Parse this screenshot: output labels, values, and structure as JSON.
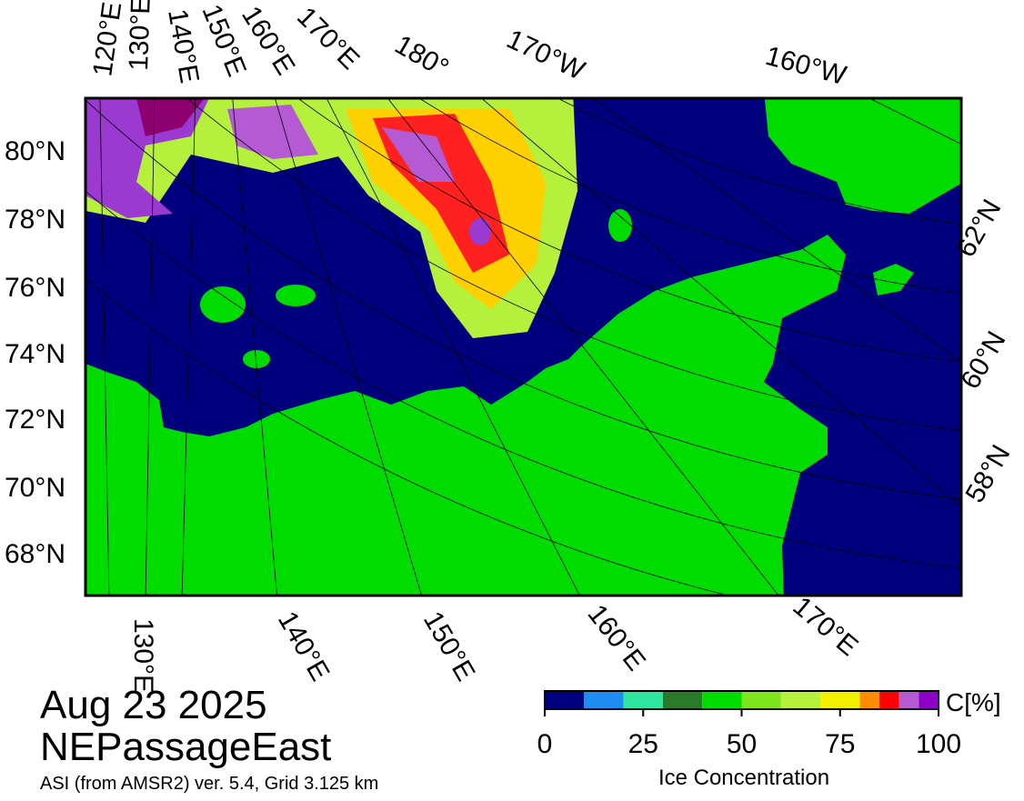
{
  "map": {
    "top_labels": [
      "120°E",
      "130°E",
      "140°E",
      "150°E",
      "160°E",
      "170°E",
      "180°",
      "170°W",
      "160°W"
    ],
    "left_labels": [
      "80°N",
      "78°N",
      "76°N",
      "74°N",
      "72°N",
      "70°N",
      "68°N"
    ],
    "right_labels": [
      "62°N",
      "60°N",
      "58°N"
    ],
    "bottom_labels": [
      "130°E",
      "140°E",
      "150°E",
      "160°E",
      "170°E"
    ]
  },
  "date": "Aug 23 2025",
  "region": "NEPassageEast",
  "source": "ASI (from AMSR2) ver. 5.4,  Grid 3.125 km",
  "colorbar": {
    "title": "Ice Concentration",
    "unit": "C[%]",
    "ticks": [
      0,
      25,
      50,
      75,
      100
    ],
    "lim": [
      0,
      100
    ],
    "bounds": [
      0,
      10,
      20,
      30,
      40,
      50,
      60,
      70,
      80,
      85,
      90,
      95,
      100
    ],
    "colors": [
      "#00007f",
      "#1e8cf0",
      "#2ee6a0",
      "#2a7a2a",
      "#00dc00",
      "#7fe61e",
      "#b4f03c",
      "#f0f000",
      "#ff8c00",
      "#ff0000",
      "#b45ad2",
      "#8c00c8"
    ]
  }
}
